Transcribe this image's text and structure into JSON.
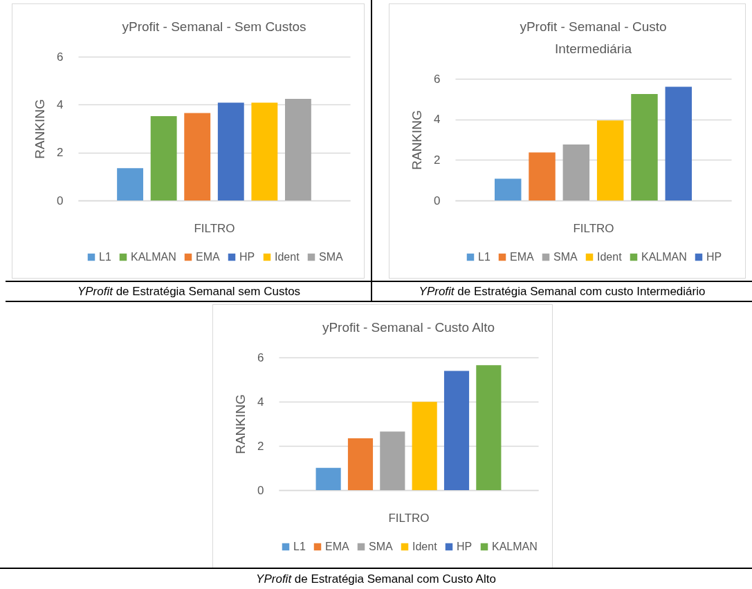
{
  "chart_data": [
    {
      "type": "bar",
      "title": "yProfit - Semanal - Sem Custos",
      "xlabel": "FILTRO",
      "ylabel": "RANKING",
      "categories": [
        null
      ],
      "series": [
        {
          "name": "L1",
          "color": "#5b9bd5",
          "values": [
            1.35
          ]
        },
        {
          "name": "KALMAN",
          "color": "#70ad47",
          "values": [
            3.52
          ]
        },
        {
          "name": "EMA",
          "color": "#ed7d31",
          "values": [
            3.65
          ]
        },
        {
          "name": "HP",
          "color": "#4472c4",
          "values": [
            4.08
          ]
        },
        {
          "name": "Ident",
          "color": "#ffc000",
          "values": [
            4.08
          ]
        },
        {
          "name": "SMA",
          "color": "#a5a5a5",
          "values": [
            4.24
          ]
        }
      ],
      "ylim": [
        0,
        6
      ],
      "yticks": [
        0,
        2,
        4,
        6
      ],
      "grid": "y",
      "legend": "bottom",
      "annotations": [
        "YProfit de Estratégia Semanal sem Custos"
      ]
    },
    {
      "type": "bar",
      "title": "yProfit - Semanal - Custo Intermediária",
      "xlabel": "FILTRO",
      "ylabel": "RANKING",
      "categories": [
        null
      ],
      "series": [
        {
          "name": "L1",
          "color": "#5b9bd5",
          "values": [
            1.07
          ]
        },
        {
          "name": "EMA",
          "color": "#ed7d31",
          "values": [
            2.37
          ]
        },
        {
          "name": "SMA",
          "color": "#a5a5a5",
          "values": [
            2.76
          ]
        },
        {
          "name": "Ident",
          "color": "#ffc000",
          "values": [
            3.95
          ]
        },
        {
          "name": "KALMAN",
          "color": "#70ad47",
          "values": [
            5.25
          ]
        },
        {
          "name": "HP",
          "color": "#4472c4",
          "values": [
            5.61
          ]
        }
      ],
      "ylim": [
        0,
        6
      ],
      "yticks": [
        0,
        2,
        4,
        6
      ],
      "grid": "y",
      "legend": "bottom",
      "annotations": [
        "YProfit de Estratégia Semanal com custo Intermediário"
      ]
    },
    {
      "type": "bar",
      "title": "yProfit - Semanal - Custo Alto",
      "xlabel": "FILTRO",
      "ylabel": "RANKING",
      "categories": [
        null
      ],
      "series": [
        {
          "name": "L1",
          "color": "#5b9bd5",
          "values": [
            1.01
          ]
        },
        {
          "name": "EMA",
          "color": "#ed7d31",
          "values": [
            2.34
          ]
        },
        {
          "name": "SMA",
          "color": "#a5a5a5",
          "values": [
            2.65
          ]
        },
        {
          "name": "Ident",
          "color": "#ffc000",
          "values": [
            3.99
          ]
        },
        {
          "name": "HP",
          "color": "#4472c4",
          "values": [
            5.39
          ]
        },
        {
          "name": "KALMAN",
          "color": "#70ad47",
          "values": [
            5.65
          ]
        }
      ],
      "ylim": [
        0,
        6
      ],
      "yticks": [
        0,
        2,
        4,
        6
      ],
      "grid": "y",
      "legend": "bottom",
      "annotations": [
        "YProfit de Estratégia Semanal com Custo Alto"
      ]
    }
  ]
}
